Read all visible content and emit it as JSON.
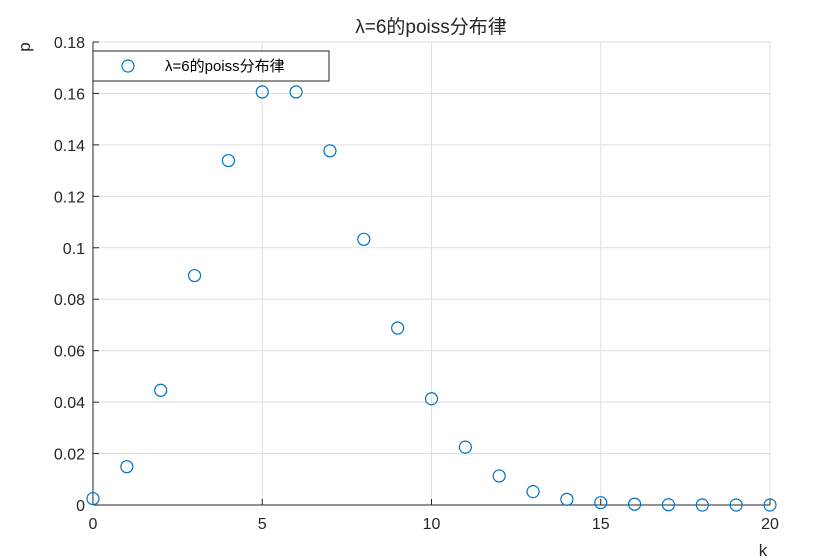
{
  "chart_data": {
    "type": "scatter",
    "title": "λ=6的poiss分布律",
    "xlabel": "k",
    "ylabel": "p",
    "xlim": [
      0,
      20
    ],
    "ylim": [
      0,
      0.18
    ],
    "xticks": [
      "0",
      "5",
      "10",
      "15",
      "20"
    ],
    "yticks": [
      "0",
      "0.02",
      "0.04",
      "0.06",
      "0.08",
      "0.1",
      "0.12",
      "0.14",
      "0.16",
      "0.18"
    ],
    "grid": true,
    "legend_position": "top-left",
    "marker": "open-circle",
    "color": "#0072BD",
    "series": [
      {
        "name": "λ=6的poiss分布律",
        "x": [
          0,
          1,
          2,
          3,
          4,
          5,
          6,
          7,
          8,
          9,
          10,
          11,
          12,
          13,
          14,
          15,
          16,
          17,
          18,
          19,
          20
        ],
        "y": [
          0.0025,
          0.0149,
          0.0446,
          0.0892,
          0.1339,
          0.1606,
          0.1606,
          0.1377,
          0.1033,
          0.0688,
          0.0413,
          0.0225,
          0.0113,
          0.0052,
          0.0022,
          0.0009,
          0.0003,
          0.0001,
          0.0,
          0.0,
          0.0
        ]
      }
    ]
  }
}
